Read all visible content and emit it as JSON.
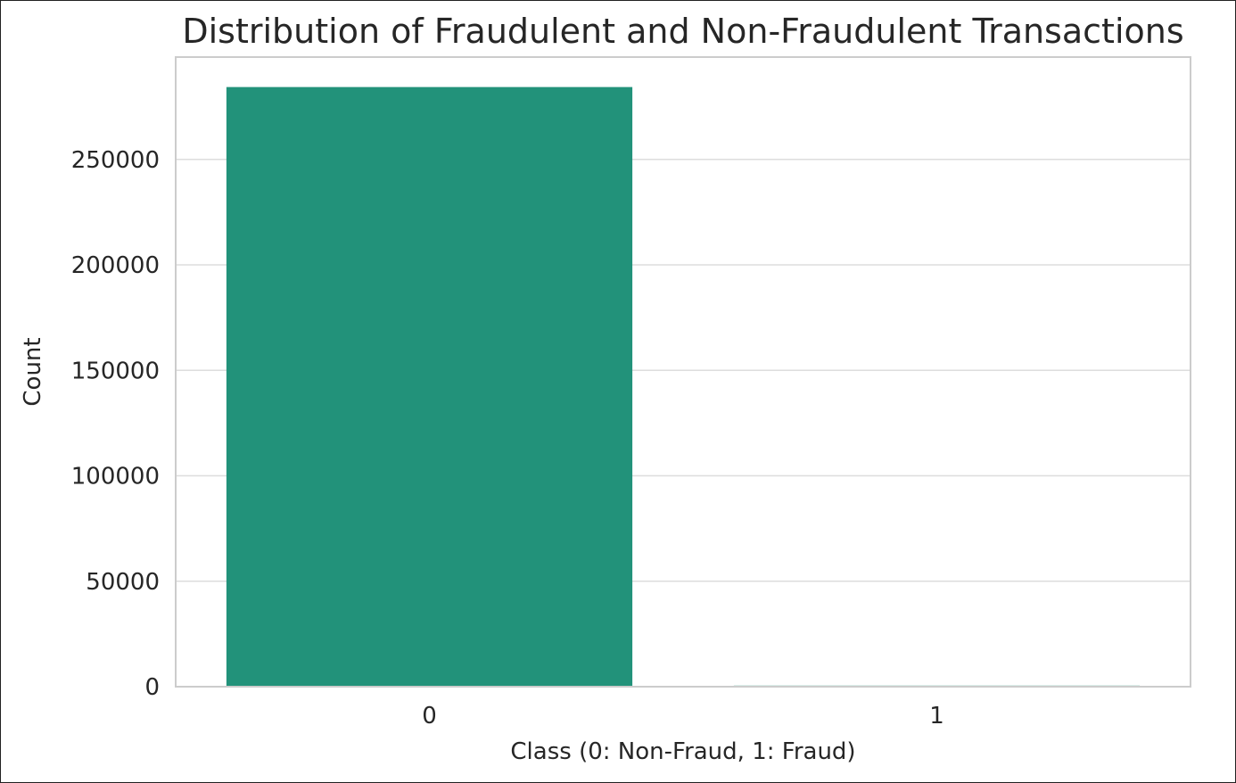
{
  "chart_data": {
    "type": "bar",
    "title": "Distribution of Fraudulent and Non-Fraudulent Transactions",
    "xlabel": "Class (0: Non-Fraud, 1: Fraud)",
    "ylabel": "Count",
    "categories": [
      "0",
      "1"
    ],
    "values": [
      284315,
      492
    ],
    "ylim": [
      0,
      298526
    ],
    "yticks": [
      0,
      50000,
      100000,
      150000,
      200000,
      250000
    ],
    "ytick_labels": [
      "0",
      "50000",
      "100000",
      "150000",
      "200000",
      "250000"
    ],
    "grid": "horizontal",
    "colors": [
      "#22927a",
      "#22927a"
    ],
    "grid_color": "#dddddd",
    "spine_color": "#cccccc"
  }
}
